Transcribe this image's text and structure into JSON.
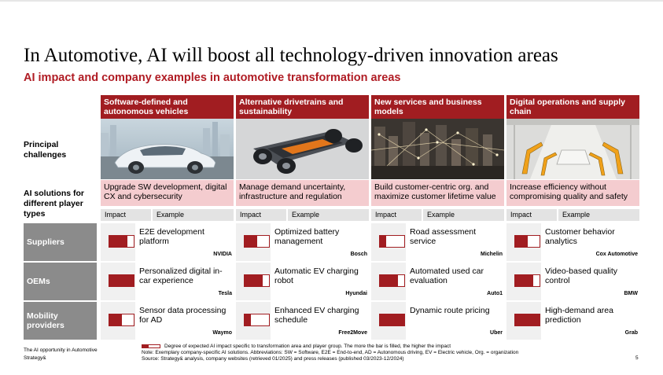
{
  "title": "In Automotive, AI will boost all technology-driven innovation areas",
  "subtitle": "AI impact and company examples in automotive transformation areas",
  "row_labels": {
    "challenges": "Principal challenges",
    "solutions": "AI solutions for different player types"
  },
  "columns": [
    {
      "header": "Software-defined and autonomous vehicles",
      "challenge": "Upgrade SW development, digital CX and cybersecurity",
      "image": "autonomous-car-image"
    },
    {
      "header": "Alternative drivetrains and sustainability",
      "challenge": "Manage demand uncertainty, infrastructure and regulation",
      "image": "ev-chassis-image"
    },
    {
      "header": "New services and business models",
      "challenge": "Build customer-centric org. and maximize customer lifetime value",
      "image": "city-network-image"
    },
    {
      "header": "Digital operations and supply chain",
      "challenge": "Increase efficiency without compromising quality and safety",
      "image": "robot-assembly-image"
    }
  ],
  "subheaders": {
    "impact": "Impact",
    "example": "Example"
  },
  "players": [
    {
      "name": "Suppliers",
      "cells": [
        {
          "impact": 0.75,
          "example": "E2E development platform",
          "company": "NVIDIA"
        },
        {
          "impact": 0.5,
          "example": "Optimized battery management",
          "company": "Bosch"
        },
        {
          "impact": 0.25,
          "example": "Road assessment service",
          "company": "Michelin"
        },
        {
          "impact": 0.5,
          "example": "Customer behavior analytics",
          "company": "Cox Automotive"
        }
      ]
    },
    {
      "name": "OEMs",
      "cells": [
        {
          "impact": 1.0,
          "example": "Personalized digital in-car experience",
          "company": "Tesla"
        },
        {
          "impact": 0.75,
          "example": "Automatic EV charging robot",
          "company": "Hyundai"
        },
        {
          "impact": 0.75,
          "example": "Automated used car evaluation",
          "company": "Auto1"
        },
        {
          "impact": 0.75,
          "example": "Video-based quality control",
          "company": "BMW"
        }
      ]
    },
    {
      "name": "Mobility providers",
      "cells": [
        {
          "impact": 0.5,
          "example": "Sensor data processing for AD",
          "company": "Waymo"
        },
        {
          "impact": 0.25,
          "example": "Enhanced EV charging schedule",
          "company": "Free2Move"
        },
        {
          "impact": 1.0,
          "example": "Dynamic route pricing",
          "company": "Uber"
        },
        {
          "impact": 1.0,
          "example": "High-demand area prediction",
          "company": "Grab"
        }
      ]
    }
  ],
  "legend": {
    "impact": 0.35,
    "text": "Degree of expected AI impact specific to transformation area and player group. The more the bar is filled, the higher the impact"
  },
  "note": "Note: Exemplary company-specific AI solutions. Abbreviations: SW = Software, E2E = End-to-end, AD = Autonomous driving, EV = Electric vehicle, Org. = organization",
  "source": "Source: Strategy& analysis, company websites (retrieved 01/2025) and press releases (published 03/2023-12/2024)",
  "footer": {
    "report": "The AI opportunity in Automotive",
    "brand": "Strategy&",
    "page": "5"
  },
  "colors": {
    "accent": "#a11d21",
    "accent_text": "#b01c24",
    "challenge_bg": "#f4cccf",
    "player_bg": "#8b8b8b"
  }
}
